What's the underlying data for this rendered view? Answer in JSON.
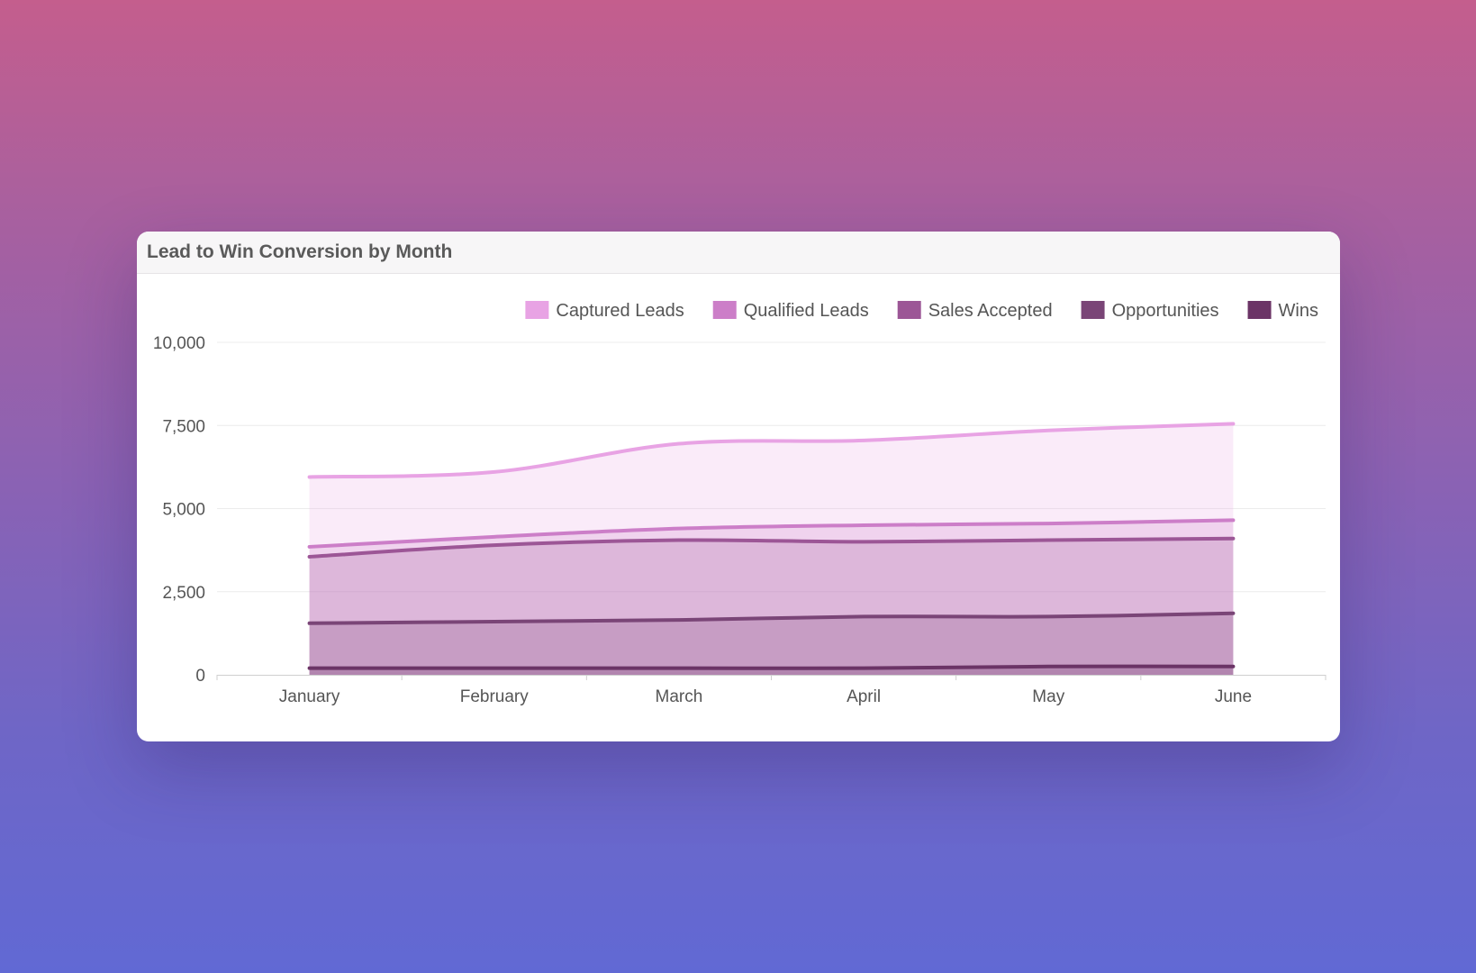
{
  "chart_data": {
    "type": "area",
    "title": "Lead to Win Conversion by Month",
    "categories": [
      "January",
      "February",
      "March",
      "April",
      "May",
      "June"
    ],
    "ylim": [
      0,
      10000
    ],
    "yticks": [
      0,
      2500,
      5000,
      7500,
      10000
    ],
    "ytick_labels": [
      "0",
      "2,500",
      "5,000",
      "7,500",
      "10,000"
    ],
    "grid": true,
    "legend_position": "top-right",
    "series": [
      {
        "name": "Captured Leads",
        "color": "#e8a3e4",
        "values": [
          5950,
          6100,
          6950,
          7050,
          7350,
          7550
        ]
      },
      {
        "name": "Qualified Leads",
        "color": "#cc7ec8",
        "values": [
          3850,
          4150,
          4400,
          4500,
          4550,
          4650
        ]
      },
      {
        "name": "Sales Accepted",
        "color": "#9c5696",
        "values": [
          3550,
          3900,
          4050,
          4000,
          4050,
          4100
        ]
      },
      {
        "name": "Opportunities",
        "color": "#7a4577",
        "values": [
          1550,
          1600,
          1650,
          1750,
          1750,
          1850
        ]
      },
      {
        "name": "Wins",
        "color": "#6b3466",
        "values": [
          200,
          200,
          200,
          200,
          250,
          250
        ]
      }
    ]
  }
}
